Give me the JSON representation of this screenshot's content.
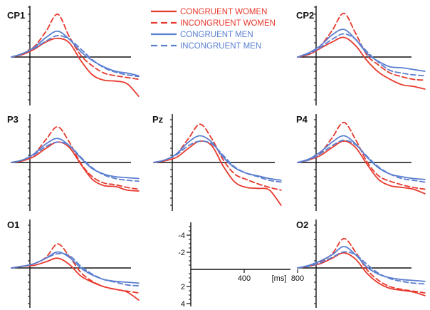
{
  "colors": {
    "women": "#e8392d",
    "men": "#5b7fd0",
    "axis": "#111111"
  },
  "legend": [
    {
      "label": "CONGRUENT WOMEN",
      "color": "#e8392d",
      "dash": false
    },
    {
      "label": "INCONGRUENT WOMEN",
      "color": "#e8392d",
      "dash": true
    },
    {
      "label": "CONGRUENT MEN",
      "color": "#5b7fd0",
      "dash": false
    },
    {
      "label": "INCONGRUENT MEN",
      "color": "#5b7fd0",
      "dash": true
    }
  ],
  "scale_axis": {
    "y_ticks": [
      -4,
      -2,
      2,
      4
    ],
    "y_tick_labels": [
      "-4",
      "-2",
      "2",
      "4"
    ],
    "x_ticks": [
      400,
      800
    ],
    "x_tick_labels": [
      "400",
      "800"
    ],
    "x_unit": "[ms]"
  },
  "chart_data": [
    {
      "type": "line",
      "panel": "CP1",
      "xlim": [
        -100,
        1000
      ],
      "ylim": [
        -5,
        5
      ],
      "y_negative_up": true,
      "x": [
        -100,
        0,
        100,
        200,
        300,
        400,
        500,
        600,
        700,
        800,
        900,
        1000
      ],
      "series": [
        {
          "name": "CONGRUENT WOMEN",
          "values": [
            0,
            -0.3,
            -0.9,
            -1.7,
            -2.1,
            -1.6,
            0.4,
            2.0,
            2.6,
            2.7,
            3.0,
            4.4
          ]
        },
        {
          "name": "INCONGRUENT WOMEN",
          "values": [
            0,
            -0.4,
            -1.2,
            -2.9,
            -4.8,
            -2.3,
            -0.2,
            1.0,
            1.8,
            2.1,
            2.3,
            2.5
          ]
        },
        {
          "name": "CONGRUENT MEN",
          "values": [
            0,
            -0.4,
            -1.1,
            -2.2,
            -2.9,
            -2.0,
            -0.6,
            0.4,
            1.1,
            1.6,
            1.8,
            2.1
          ]
        },
        {
          "name": "INCONGRUENT MEN",
          "values": [
            0,
            -0.4,
            -1.0,
            -1.8,
            -2.4,
            -2.0,
            -0.9,
            0.3,
            1.2,
            1.7,
            2.0,
            2.2
          ]
        }
      ]
    },
    {
      "type": "line",
      "panel": "CP2",
      "xlim": [
        -100,
        1000
      ],
      "ylim": [
        -5,
        5
      ],
      "y_negative_up": true,
      "x": [
        -100,
        0,
        100,
        200,
        300,
        400,
        500,
        600,
        700,
        800,
        900,
        1000
      ],
      "series": [
        {
          "name": "CONGRUENT WOMEN",
          "values": [
            0,
            -0.3,
            -1.0,
            -1.7,
            -2.2,
            -1.3,
            0.4,
            1.7,
            2.5,
            3.1,
            3.3,
            3.6
          ]
        },
        {
          "name": "INCONGRUENT WOMEN",
          "values": [
            0,
            -0.4,
            -1.3,
            -3.0,
            -4.9,
            -2.7,
            -0.2,
            0.9,
            1.8,
            2.2,
            2.5,
            2.6
          ]
        },
        {
          "name": "CONGRUENT MEN",
          "values": [
            0,
            -0.5,
            -1.3,
            -2.5,
            -3.1,
            -2.0,
            -0.4,
            0.5,
            1.1,
            1.2,
            1.4,
            1.6
          ]
        },
        {
          "name": "INCONGRUENT MEN",
          "values": [
            0,
            -0.4,
            -1.1,
            -2.0,
            -2.6,
            -2.0,
            -0.6,
            0.6,
            1.5,
            1.8,
            2.0,
            2.1
          ]
        }
      ]
    },
    {
      "type": "line",
      "panel": "P3",
      "xlim": [
        -100,
        1000
      ],
      "ylim": [
        -5,
        5
      ],
      "y_negative_up": true,
      "x": [
        -100,
        0,
        100,
        200,
        300,
        400,
        500,
        600,
        700,
        800,
        900,
        1000
      ],
      "series": [
        {
          "name": "CONGRUENT WOMEN",
          "values": [
            0,
            -0.2,
            -0.7,
            -1.6,
            -2.3,
            -1.7,
            0.2,
            1.9,
            2.6,
            2.7,
            3.1,
            3.2
          ]
        },
        {
          "name": "INCONGRUENT WOMEN",
          "values": [
            0,
            -0.3,
            -1.0,
            -2.6,
            -4.0,
            -2.3,
            0.1,
            1.6,
            2.3,
            2.5,
            2.8,
            3.0
          ]
        },
        {
          "name": "CONGRUENT MEN",
          "values": [
            0,
            -0.3,
            -1.0,
            -2.1,
            -2.7,
            -1.9,
            -0.5,
            0.7,
            1.3,
            1.6,
            1.7,
            1.8
          ]
        },
        {
          "name": "INCONGRUENT MEN",
          "values": [
            0,
            -0.3,
            -0.9,
            -1.8,
            -2.3,
            -1.9,
            -0.6,
            0.6,
            1.4,
            1.8,
            2.0,
            2.1
          ]
        }
      ]
    },
    {
      "type": "line",
      "panel": "Pz",
      "xlim": [
        -100,
        1000
      ],
      "ylim": [
        -5,
        5
      ],
      "y_negative_up": true,
      "x": [
        -100,
        0,
        100,
        200,
        300,
        400,
        500,
        600,
        700,
        800,
        900,
        1000
      ],
      "series": [
        {
          "name": "CONGRUENT WOMEN",
          "values": [
            0,
            -0.2,
            -0.6,
            -1.6,
            -2.4,
            -1.9,
            0.4,
            2.2,
            2.8,
            2.9,
            3.1,
            4.8
          ]
        },
        {
          "name": "INCONGRUENT WOMEN",
          "values": [
            0,
            -0.3,
            -1.0,
            -2.7,
            -4.3,
            -2.7,
            -0.3,
            1.3,
            1.9,
            2.4,
            2.8,
            3.1
          ]
        },
        {
          "name": "CONGRUENT MEN",
          "values": [
            0,
            -0.3,
            -1.0,
            -2.3,
            -3.0,
            -2.3,
            -0.6,
            0.6,
            1.2,
            1.5,
            1.8,
            2.0
          ]
        },
        {
          "name": "INCONGRUENT MEN",
          "values": [
            0,
            -0.3,
            -0.9,
            -1.9,
            -2.4,
            -2.1,
            -0.8,
            0.5,
            1.2,
            1.6,
            2.0,
            2.2
          ]
        }
      ]
    },
    {
      "type": "line",
      "panel": "P4",
      "xlim": [
        -100,
        1000
      ],
      "ylim": [
        -5,
        5
      ],
      "y_negative_up": true,
      "x": [
        -100,
        0,
        100,
        200,
        300,
        400,
        500,
        600,
        700,
        800,
        900,
        1000
      ],
      "series": [
        {
          "name": "CONGRUENT WOMEN",
          "values": [
            0,
            -0.3,
            -0.8,
            -1.7,
            -2.4,
            -1.7,
            0.2,
            1.9,
            2.6,
            2.8,
            3.0,
            3.5
          ]
        },
        {
          "name": "INCONGRUENT WOMEN",
          "values": [
            0,
            -0.3,
            -1.1,
            -2.8,
            -4.5,
            -2.6,
            -0.1,
            1.5,
            2.1,
            2.5,
            2.8,
            3.0
          ]
        },
        {
          "name": "CONGRUENT MEN",
          "values": [
            0,
            -0.4,
            -1.2,
            -2.3,
            -3.0,
            -2.1,
            -0.6,
            0.6,
            1.3,
            1.6,
            1.8,
            1.9
          ]
        },
        {
          "name": "INCONGRUENT MEN",
          "values": [
            0,
            -0.3,
            -1.0,
            -1.9,
            -2.5,
            -2.0,
            -0.7,
            0.5,
            1.3,
            1.8,
            2.0,
            2.2
          ]
        }
      ]
    },
    {
      "type": "line",
      "panel": "O1",
      "xlim": [
        -100,
        1000
      ],
      "ylim": [
        -5,
        5
      ],
      "y_negative_up": true,
      "x": [
        -100,
        0,
        100,
        200,
        300,
        400,
        500,
        600,
        700,
        800,
        900,
        1000
      ],
      "series": [
        {
          "name": "CONGRUENT WOMEN",
          "values": [
            0,
            -0.2,
            -0.3,
            -0.7,
            -1.1,
            -0.4,
            0.9,
            1.6,
            2.1,
            2.4,
            2.7,
            3.6
          ]
        },
        {
          "name": "INCONGRUENT WOMEN",
          "values": [
            0,
            -0.2,
            -0.5,
            -1.2,
            -2.7,
            -1.3,
            0.5,
            1.5,
            2.1,
            2.4,
            2.6,
            2.8
          ]
        },
        {
          "name": "CONGRUENT MEN",
          "values": [
            0,
            -0.2,
            -0.5,
            -1.1,
            -1.8,
            -1.2,
            0.0,
            0.8,
            1.3,
            1.5,
            1.6,
            1.7
          ]
        },
        {
          "name": "INCONGRUENT MEN",
          "values": [
            0,
            -0.2,
            -0.5,
            -1.1,
            -1.6,
            -1.4,
            -0.2,
            0.7,
            1.3,
            1.6,
            1.9,
            2.0
          ]
        }
      ]
    },
    {
      "type": "line",
      "panel": "O2",
      "xlim": [
        -100,
        1000
      ],
      "ylim": [
        -5,
        5
      ],
      "y_negative_up": true,
      "x": [
        -100,
        0,
        100,
        200,
        300,
        400,
        500,
        600,
        700,
        800,
        900,
        1000
      ],
      "series": [
        {
          "name": "CONGRUENT WOMEN",
          "values": [
            0,
            -0.2,
            -0.5,
            -1.1,
            -1.7,
            -1.0,
            0.6,
            1.7,
            2.3,
            2.5,
            2.7,
            3.1
          ]
        },
        {
          "name": "INCONGRUENT WOMEN",
          "values": [
            0,
            -0.2,
            -0.7,
            -1.6,
            -3.3,
            -1.8,
            0.2,
            1.4,
            2.1,
            2.4,
            2.6,
            2.8
          ]
        },
        {
          "name": "CONGRUENT MEN",
          "values": [
            0,
            -0.3,
            -0.8,
            -1.5,
            -2.4,
            -1.5,
            -0.1,
            0.7,
            1.1,
            1.3,
            1.4,
            1.5
          ]
        },
        {
          "name": "INCONGRUENT MEN",
          "values": [
            0,
            -0.2,
            -0.6,
            -1.2,
            -1.8,
            -1.5,
            -0.4,
            0.6,
            1.2,
            1.5,
            1.7,
            1.8
          ]
        }
      ]
    }
  ]
}
